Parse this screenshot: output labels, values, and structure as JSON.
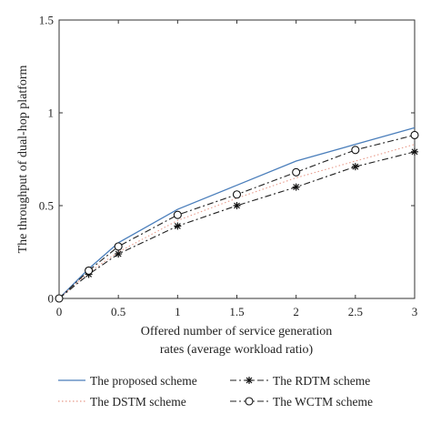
{
  "chart_data": {
    "type": "line",
    "title": "",
    "xlabel_lines": [
      "Offered number of service generation",
      "rates (average workload ratio)"
    ],
    "ylabel": "The throughput of dual-hop platform",
    "xlim": [
      0,
      3
    ],
    "ylim": [
      0,
      1.5
    ],
    "x_ticks": [
      0,
      0.5,
      1,
      1.5,
      2,
      2.5,
      3
    ],
    "x_tick_labels": [
      "0",
      "0.5",
      "1",
      "1.5",
      "2",
      "2.5",
      "3"
    ],
    "y_ticks": [
      0,
      0.5,
      1,
      1.5
    ],
    "y_tick_labels": [
      "0",
      "0.5",
      "1",
      "1.5"
    ],
    "grid": false,
    "legend_position": "bottom",
    "x": [
      0,
      0.25,
      0.5,
      1,
      1.5,
      2,
      2.5,
      3
    ],
    "series": [
      {
        "name": "The proposed scheme",
        "values": [
          0,
          0.16,
          0.3,
          0.48,
          0.61,
          0.74,
          0.83,
          0.92
        ],
        "color": "#4a7ebb",
        "dash": "solid",
        "marker": "none"
      },
      {
        "name": "The DSTM scheme",
        "values": [
          0,
          0.14,
          0.25,
          0.42,
          0.54,
          0.65,
          0.74,
          0.83
        ],
        "color": "#e89a8a",
        "dash": "dotted",
        "marker": "none"
      },
      {
        "name": "The RDTM scheme",
        "values": [
          0,
          0.13,
          0.24,
          0.39,
          0.5,
          0.6,
          0.71,
          0.79
        ],
        "color": "#222222",
        "dash": "dashdot",
        "marker": "star"
      },
      {
        "name": "The WCTM scheme",
        "values": [
          0,
          0.15,
          0.28,
          0.45,
          0.56,
          0.68,
          0.8,
          0.88
        ],
        "color": "#222222",
        "dash": "dashdot",
        "marker": "circle"
      }
    ]
  }
}
